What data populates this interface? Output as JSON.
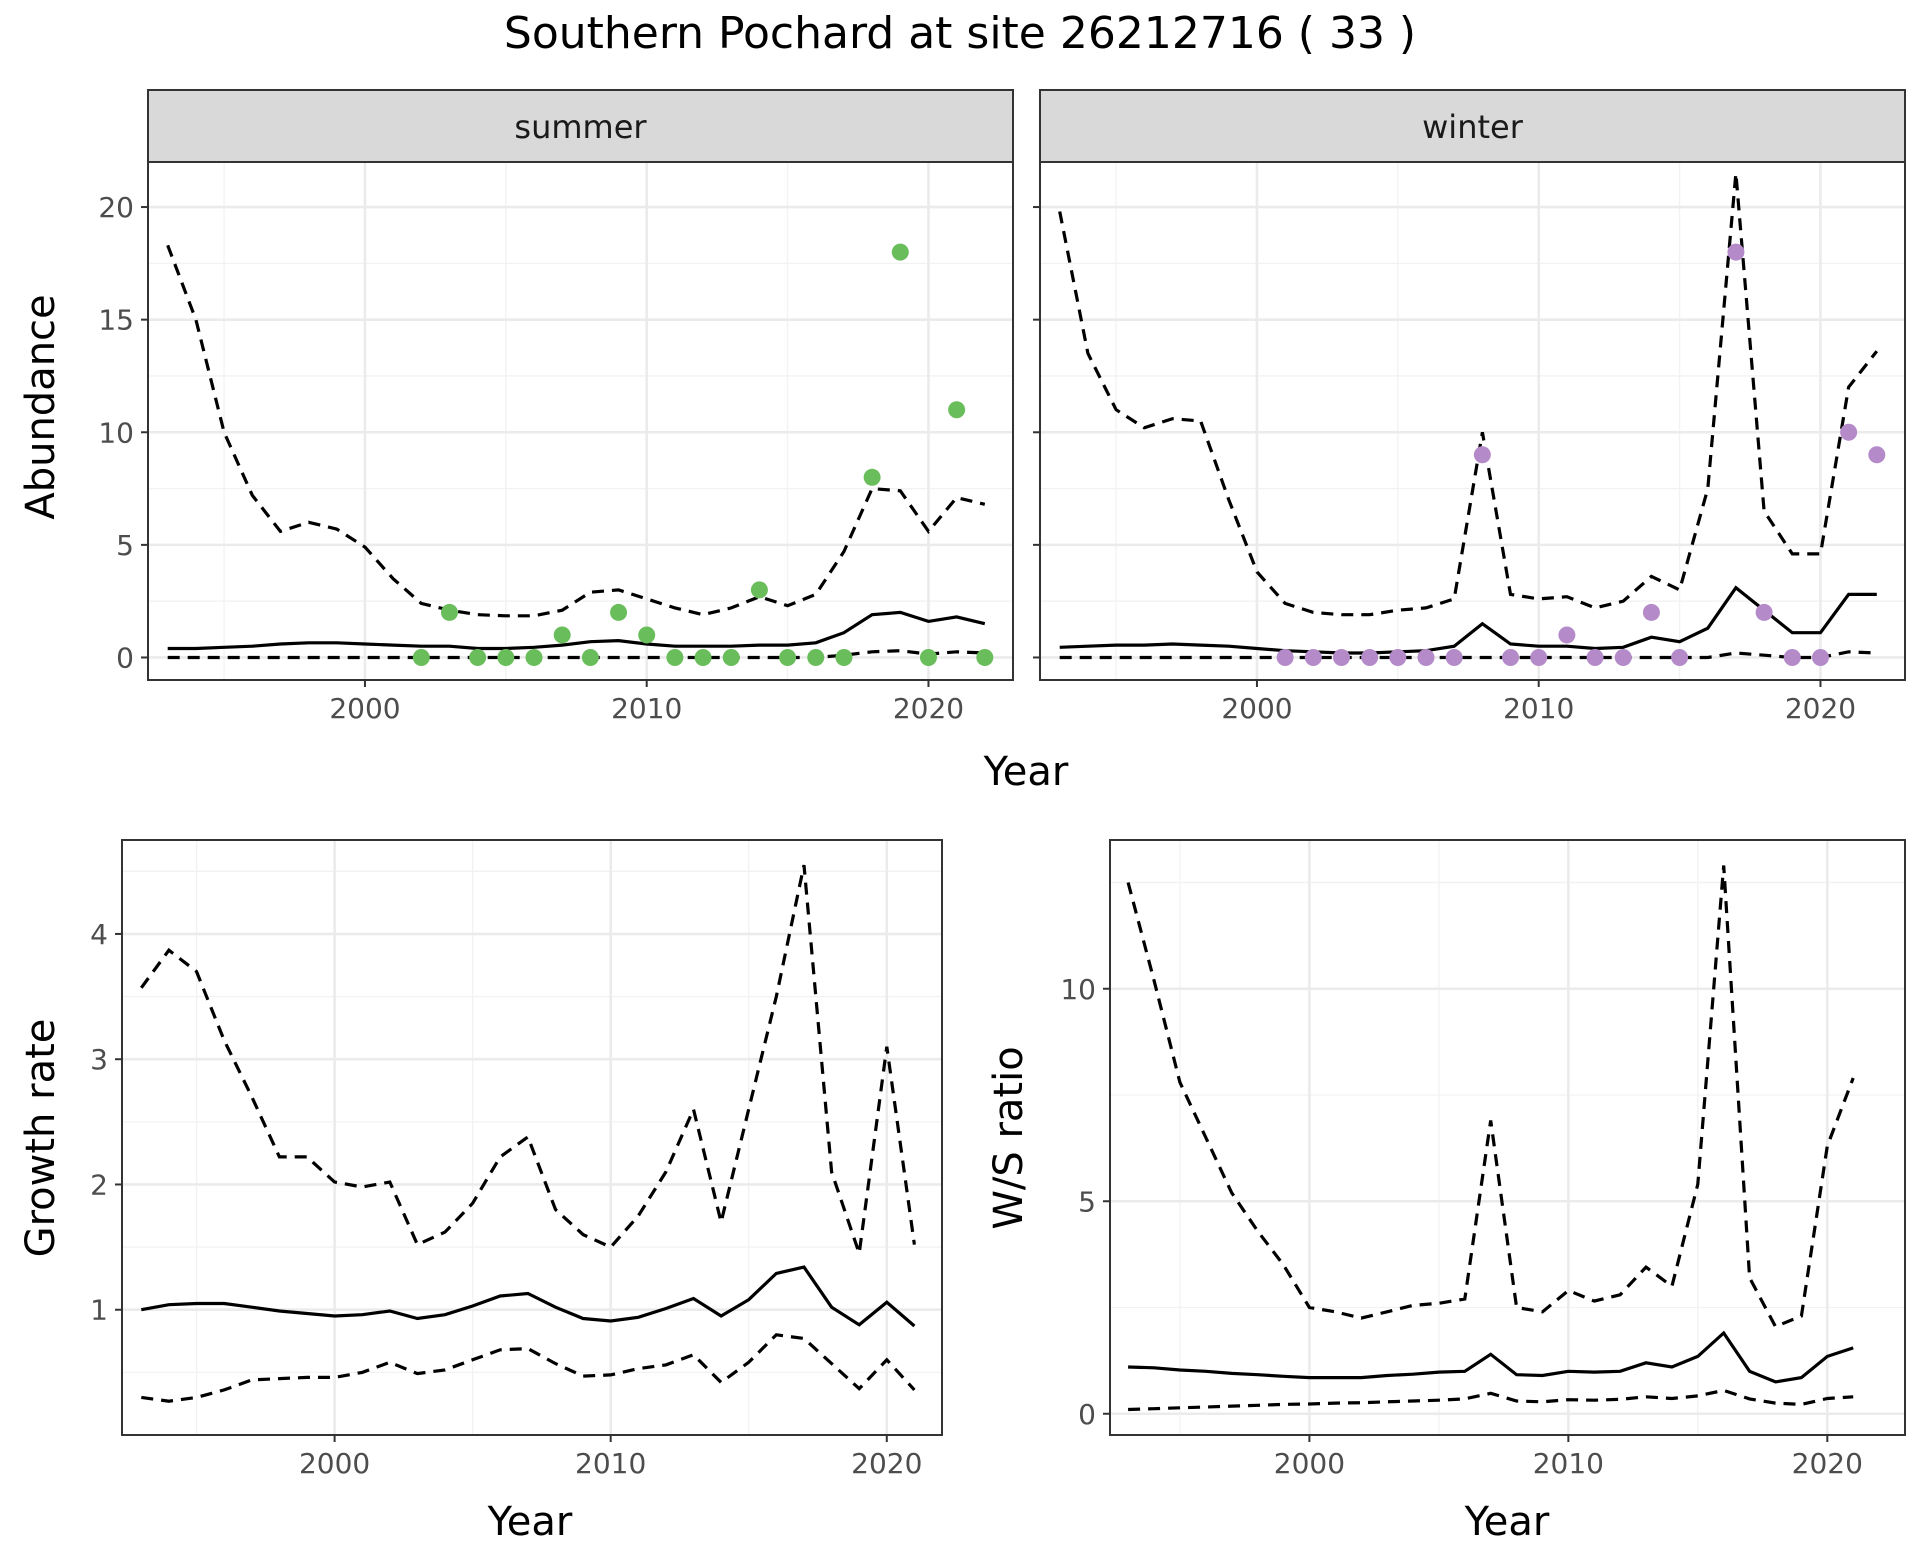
{
  "title": "Southern Pochard at site 26212716 ( 33 )",
  "colors": {
    "summer_points": "#6abd5b",
    "winter_points": "#b48ac9",
    "lines": "#000000"
  },
  "chart_data": [
    {
      "id": "summer",
      "type": "line",
      "strip_label": "summer",
      "xlabel": "Year",
      "ylabel": "Abundance",
      "xlim": [
        1992.3,
        2023.0
      ],
      "ylim": [
        -1.0,
        22.0
      ],
      "x_ticks": [
        2000,
        2010,
        2020
      ],
      "y_ticks": [
        0,
        5,
        10,
        15,
        20
      ],
      "grid": true,
      "point_color": "#6abd5b",
      "x": [
        1993,
        1994,
        1995,
        1996,
        1997,
        1998,
        1999,
        2000,
        2001,
        2002,
        2003,
        2004,
        2005,
        2006,
        2007,
        2008,
        2009,
        2010,
        2011,
        2012,
        2013,
        2014,
        2015,
        2016,
        2017,
        2018,
        2019,
        2020,
        2021,
        2022
      ],
      "series": [
        {
          "values": [
            0.4,
            0.4,
            0.45,
            0.5,
            0.6,
            0.65,
            0.65,
            0.6,
            0.55,
            0.5,
            0.5,
            0.4,
            0.4,
            0.45,
            0.55,
            0.7,
            0.75,
            0.6,
            0.5,
            0.5,
            0.5,
            0.55,
            0.55,
            0.65,
            1.1,
            1.9,
            2.0,
            1.6,
            1.8,
            1.5
          ]
        },
        {
          "values": [
            18.3,
            15.0,
            10.0,
            7.2,
            5.6,
            6.0,
            5.7,
            4.9,
            3.5,
            2.4,
            2.1,
            1.9,
            1.85,
            1.85,
            2.1,
            2.9,
            3.0,
            2.6,
            2.2,
            1.9,
            2.2,
            2.7,
            2.3,
            2.8,
            4.7,
            7.5,
            7.4,
            5.6,
            7.1,
            6.8
          ]
        },
        {
          "values": [
            0,
            0,
            0,
            0,
            0,
            0,
            0,
            0,
            0,
            0,
            0,
            0,
            0,
            0,
            0,
            0,
            0,
            0,
            0,
            0,
            0,
            0,
            0,
            0,
            0.1,
            0.25,
            0.3,
            0.15,
            0.25,
            0.2
          ]
        }
      ],
      "points": {
        "x": [
          2002,
          2003,
          2004,
          2005,
          2006,
          2007,
          2008,
          2009,
          2010,
          2011,
          2012,
          2013,
          2014,
          2015,
          2016,
          2017,
          2018,
          2019,
          2020,
          2021,
          2022
        ],
        "y": [
          0,
          2,
          0,
          0,
          0,
          1,
          0,
          2,
          1,
          0,
          0,
          0,
          3,
          0,
          0,
          0,
          8,
          18,
          0,
          11,
          0
        ]
      }
    },
    {
      "id": "winter",
      "type": "line",
      "strip_label": "winter",
      "xlabel": "Year",
      "ylabel": "",
      "xlim": [
        1992.3,
        2023.0
      ],
      "ylim": [
        -1.0,
        22.0
      ],
      "x_ticks": [
        2000,
        2010,
        2020
      ],
      "y_ticks": [
        0,
        5,
        10,
        15,
        20
      ],
      "grid": true,
      "point_color": "#b48ac9",
      "x": [
        1993,
        1994,
        1995,
        1996,
        1997,
        1998,
        1999,
        2000,
        2001,
        2002,
        2003,
        2004,
        2005,
        2006,
        2007,
        2008,
        2009,
        2010,
        2011,
        2012,
        2013,
        2014,
        2015,
        2016,
        2017,
        2018,
        2019,
        2020,
        2021,
        2022
      ],
      "series": [
        {
          "values": [
            0.45,
            0.5,
            0.55,
            0.55,
            0.6,
            0.55,
            0.5,
            0.4,
            0.3,
            0.25,
            0.2,
            0.2,
            0.25,
            0.3,
            0.5,
            1.5,
            0.6,
            0.5,
            0.5,
            0.4,
            0.45,
            0.9,
            0.7,
            1.3,
            3.1,
            2.1,
            1.1,
            1.1,
            2.8,
            2.8
          ]
        },
        {
          "values": [
            19.8,
            13.5,
            11.0,
            10.2,
            10.6,
            10.5,
            7.0,
            3.8,
            2.4,
            2.0,
            1.9,
            1.9,
            2.1,
            2.2,
            2.6,
            10.0,
            2.8,
            2.6,
            2.7,
            2.2,
            2.5,
            3.6,
            3.0,
            7.5,
            21.5,
            6.5,
            4.6,
            4.6,
            12.0,
            13.6
          ]
        },
        {
          "values": [
            0,
            0,
            0,
            0,
            0,
            0,
            0,
            0,
            0,
            0,
            0,
            0,
            0,
            0,
            0,
            0,
            0,
            0,
            0,
            0,
            0,
            0,
            0,
            0,
            0.2,
            0.1,
            0,
            0,
            0.25,
            0.2
          ]
        }
      ],
      "points": {
        "x": [
          2001,
          2002,
          2003,
          2004,
          2005,
          2006,
          2007,
          2008,
          2009,
          2010,
          2011,
          2012,
          2013,
          2014,
          2015,
          2017,
          2018,
          2019,
          2020,
          2021,
          2022
        ],
        "y": [
          0,
          0,
          0,
          0,
          0,
          0,
          0,
          9,
          0,
          0,
          1,
          0,
          0,
          2,
          0,
          18,
          2,
          0,
          0,
          10,
          9
        ]
      }
    },
    {
      "id": "growth",
      "type": "line",
      "strip_label": "",
      "xlabel": "Year",
      "ylabel": "Growth rate",
      "xlim": [
        1992.3,
        2022.0
      ],
      "ylim": [
        0.0,
        4.75
      ],
      "x_ticks": [
        2000,
        2010,
        2020
      ],
      "y_ticks": [
        1,
        2,
        3,
        4
      ],
      "grid": true,
      "x": [
        1993,
        1994,
        1995,
        1996,
        1997,
        1998,
        1999,
        2000,
        2001,
        2002,
        2003,
        2004,
        2005,
        2006,
        2007,
        2008,
        2009,
        2010,
        2011,
        2012,
        2013,
        2014,
        2015,
        2016,
        2017,
        2018,
        2019,
        2020,
        2021
      ],
      "series": [
        {
          "values": [
            1.0,
            1.04,
            1.05,
            1.05,
            1.02,
            0.99,
            0.97,
            0.95,
            0.96,
            0.99,
            0.93,
            0.96,
            1.03,
            1.11,
            1.13,
            1.02,
            0.93,
            0.91,
            0.94,
            1.01,
            1.09,
            0.95,
            1.08,
            1.29,
            1.34,
            1.02,
            0.88,
            1.06,
            0.87
          ]
        },
        {
          "values": [
            3.57,
            3.87,
            3.7,
            3.15,
            2.7,
            2.22,
            2.22,
            2.02,
            1.98,
            2.02,
            1.52,
            1.62,
            1.85,
            2.22,
            2.38,
            1.8,
            1.6,
            1.5,
            1.75,
            2.1,
            2.6,
            1.7,
            2.6,
            3.5,
            4.55,
            2.1,
            1.45,
            3.1,
            1.52
          ]
        },
        {
          "values": [
            0.3,
            0.27,
            0.3,
            0.36,
            0.44,
            0.45,
            0.46,
            0.46,
            0.5,
            0.58,
            0.49,
            0.52,
            0.6,
            0.68,
            0.69,
            0.57,
            0.47,
            0.48,
            0.53,
            0.56,
            0.64,
            0.42,
            0.58,
            0.8,
            0.77,
            0.57,
            0.37,
            0.6,
            0.36
          ]
        }
      ]
    },
    {
      "id": "ratio",
      "type": "line",
      "strip_label": "",
      "xlabel": "Year",
      "ylabel": "W/S ratio",
      "xlim": [
        1992.3,
        2023.0
      ],
      "ylim": [
        -0.5,
        13.5
      ],
      "x_ticks": [
        2000,
        2010,
        2020
      ],
      "y_ticks": [
        0,
        5,
        10
      ],
      "grid": true,
      "x": [
        1993,
        1994,
        1995,
        1996,
        1997,
        1998,
        1999,
        2000,
        2001,
        2002,
        2003,
        2004,
        2005,
        2006,
        2007,
        2008,
        2009,
        2010,
        2011,
        2012,
        2013,
        2014,
        2015,
        2016,
        2017,
        2018,
        2019,
        2020,
        2021
      ],
      "series": [
        {
          "values": [
            1.1,
            1.08,
            1.03,
            1.0,
            0.95,
            0.92,
            0.88,
            0.85,
            0.85,
            0.85,
            0.9,
            0.93,
            0.98,
            1.0,
            1.4,
            0.92,
            0.9,
            1.0,
            0.98,
            1.0,
            1.2,
            1.1,
            1.35,
            1.9,
            1.0,
            0.75,
            0.85,
            1.35,
            1.55
          ]
        },
        {
          "values": [
            12.5,
            10.2,
            7.8,
            6.5,
            5.2,
            4.3,
            3.5,
            2.5,
            2.4,
            2.25,
            2.4,
            2.55,
            2.6,
            2.7,
            6.9,
            2.5,
            2.4,
            2.9,
            2.65,
            2.8,
            3.45,
            3.0,
            5.4,
            12.9,
            3.2,
            2.05,
            2.3,
            6.3,
            7.9
          ]
        },
        {
          "values": [
            0.1,
            0.12,
            0.14,
            0.16,
            0.18,
            0.2,
            0.22,
            0.23,
            0.25,
            0.26,
            0.28,
            0.3,
            0.32,
            0.35,
            0.48,
            0.3,
            0.28,
            0.33,
            0.32,
            0.34,
            0.4,
            0.36,
            0.42,
            0.55,
            0.35,
            0.25,
            0.22,
            0.36,
            0.4
          ]
        }
      ]
    }
  ]
}
